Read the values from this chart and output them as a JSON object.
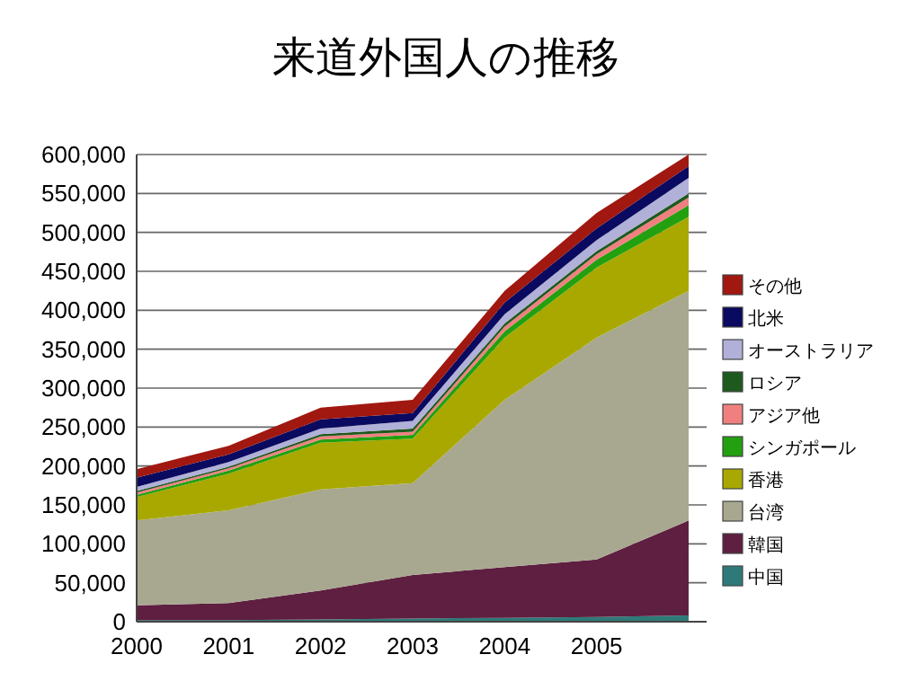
{
  "chart_data": {
    "type": "area",
    "stacked": true,
    "title": "来道外国人の推移",
    "categories": [
      "2000",
      "2001",
      "2002",
      "2003",
      "2004",
      "2005",
      null
    ],
    "ylim": [
      0,
      600000
    ],
    "yticks": [
      {
        "value": 0,
        "label": "0"
      },
      {
        "value": 50000,
        "label": "50,000"
      },
      {
        "value": 100000,
        "label": "100,000"
      },
      {
        "value": 150000,
        "label": "150,000"
      },
      {
        "value": 200000,
        "label": "200,000"
      },
      {
        "value": 250000,
        "label": "250,000"
      },
      {
        "value": 300000,
        "label": "300,000"
      },
      {
        "value": 350000,
        "label": "350,000"
      },
      {
        "value": 400000,
        "label": "400,000"
      },
      {
        "value": 450000,
        "label": "450,000"
      },
      {
        "value": 500000,
        "label": "500,000"
      },
      {
        "value": 550000,
        "label": "550,000"
      },
      {
        "value": 600000,
        "label": "600,000"
      }
    ],
    "grid": "y",
    "legend": "right",
    "series": [
      {
        "name": "中国",
        "color": "#2e7a78",
        "values": [
          2000,
          2000,
          3000,
          4000,
          5000,
          6000,
          8000
        ]
      },
      {
        "name": "韓国",
        "color": "#5e1f40",
        "values": [
          19000,
          22000,
          37000,
          56000,
          65000,
          74000,
          122000
        ]
      },
      {
        "name": "台湾",
        "color": "#a8a890",
        "values": [
          109000,
          119000,
          130000,
          118000,
          215000,
          285000,
          295000
        ]
      },
      {
        "name": "香港",
        "color": "#a8a800",
        "values": [
          30000,
          47000,
          60000,
          57000,
          80000,
          90000,
          95000
        ]
      },
      {
        "name": "シンガポール",
        "color": "#22a010",
        "values": [
          3000,
          4000,
          4000,
          5000,
          8000,
          10000,
          15000
        ]
      },
      {
        "name": "アジア他",
        "color": "#f08080",
        "values": [
          3000,
          3000,
          4000,
          4000,
          6000,
          7000,
          10000
        ]
      },
      {
        "name": "ロシア",
        "color": "#1e5a1e",
        "values": [
          2000,
          2000,
          3000,
          4000,
          4000,
          4000,
          5000
        ]
      },
      {
        "name": "オーストラリア",
        "color": "#b0b0d8",
        "values": [
          5000,
          6000,
          7000,
          10000,
          12000,
          14000,
          20000
        ]
      },
      {
        "name": "北米",
        "color": "#0a0a60",
        "values": [
          12000,
          10000,
          12000,
          10000,
          15000,
          15000,
          15000
        ]
      },
      {
        "name": "その他",
        "color": "#a01810",
        "values": [
          11000,
          11000,
          15000,
          17000,
          15000,
          20000,
          15000
        ]
      }
    ]
  }
}
